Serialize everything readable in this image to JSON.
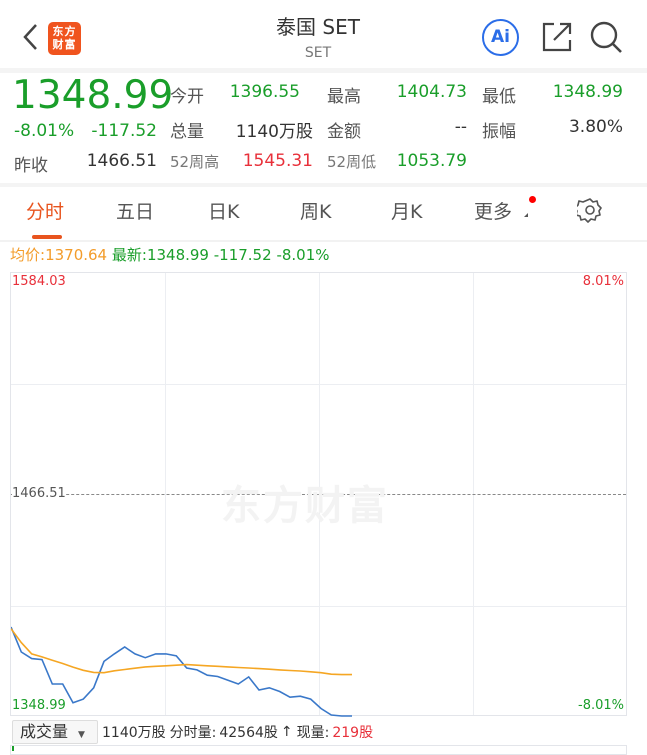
{
  "header": {
    "title": "泰国 SET",
    "subtitle": "SET",
    "logo_text": "东方财富",
    "ai_label": "Ai",
    "icons": [
      "chevron-left-icon",
      "ai-icon",
      "share-icon",
      "search-icon"
    ]
  },
  "quote": {
    "price": "1348.99",
    "change_pct": "-8.01%",
    "change": "-117.52",
    "open_label": "今开",
    "open": "1396.55",
    "high_label": "最高",
    "high": "1404.73",
    "low_label": "最低",
    "low": "1348.99",
    "volume_label": "总量",
    "volume": "1140万股",
    "amount_label": "金额",
    "amount": "--",
    "amplitude_label": "振幅",
    "amplitude": "3.80%",
    "prev_close_label": "昨收",
    "prev_close": "1466.51",
    "wk52_high_label": "52周高",
    "wk52_high": "1545.31",
    "wk52_low_label": "52周低",
    "wk52_low": "1053.79"
  },
  "tabs": [
    {
      "label": "分时",
      "active": true
    },
    {
      "label": "五日"
    },
    {
      "label": "日K"
    },
    {
      "label": "周K"
    },
    {
      "label": "月K"
    },
    {
      "label": "更多"
    }
  ],
  "info": {
    "avg_label": "均价:",
    "avg": "1370.64",
    "latest_label": "最新:",
    "latest": "1348.99",
    "change": "-117.52",
    "change_pct": "-8.01%"
  },
  "colors": {
    "up": "#e8303a",
    "down": "#1a9e2a",
    "accent": "#e8541e",
    "avg_line": "#f5a623",
    "price_line": "#3a78c9"
  },
  "chart_data": {
    "type": "line",
    "y_top_label": "1584.03",
    "y_mid_label": "1466.51",
    "y_bottom_label": "1348.99",
    "pct_top_label": "8.01%",
    "pct_bottom_label": "-8.01%",
    "ylim": [
      1348.99,
      1584.03
    ],
    "reference": 1466.51,
    "grid": true,
    "series": [
      {
        "key": "price",
        "values": [
          1396.3,
          1383,
          1379.5,
          1379,
          1366,
          1366,
          1356,
          1358,
          1364,
          1378,
          1382,
          1385.7,
          1382,
          1380,
          1382,
          1382,
          1381,
          1374.5,
          1373.5,
          1370.7,
          1370,
          1368,
          1366,
          1369.8,
          1362.8,
          1364,
          1362,
          1359,
          1359.5,
          1358,
          1353,
          1349.5,
          1348.99,
          1348.99
        ]
      },
      {
        "key": "avg",
        "values": [
          1395.4,
          1388,
          1382,
          1380.4,
          1378.6,
          1376.9,
          1375,
          1373.3,
          1372.2,
          1372,
          1373,
          1373.7,
          1374.4,
          1375.1,
          1375.4,
          1375.7,
          1376,
          1376.3,
          1376,
          1375.7,
          1375.4,
          1375.1,
          1374.8,
          1374.5,
          1374.2,
          1373.9,
          1373.5,
          1373.2,
          1372.9,
          1372.5,
          1372,
          1371.2,
          1371,
          1371
        ]
      }
    ],
    "watermark": "东方财富"
  },
  "volume_bar": {
    "selector": "成交量",
    "total": "1140万股",
    "minute_label": "分时量:",
    "minute": "42564股",
    "arrow": "↑",
    "current_label": "现量:",
    "current": "219股"
  }
}
